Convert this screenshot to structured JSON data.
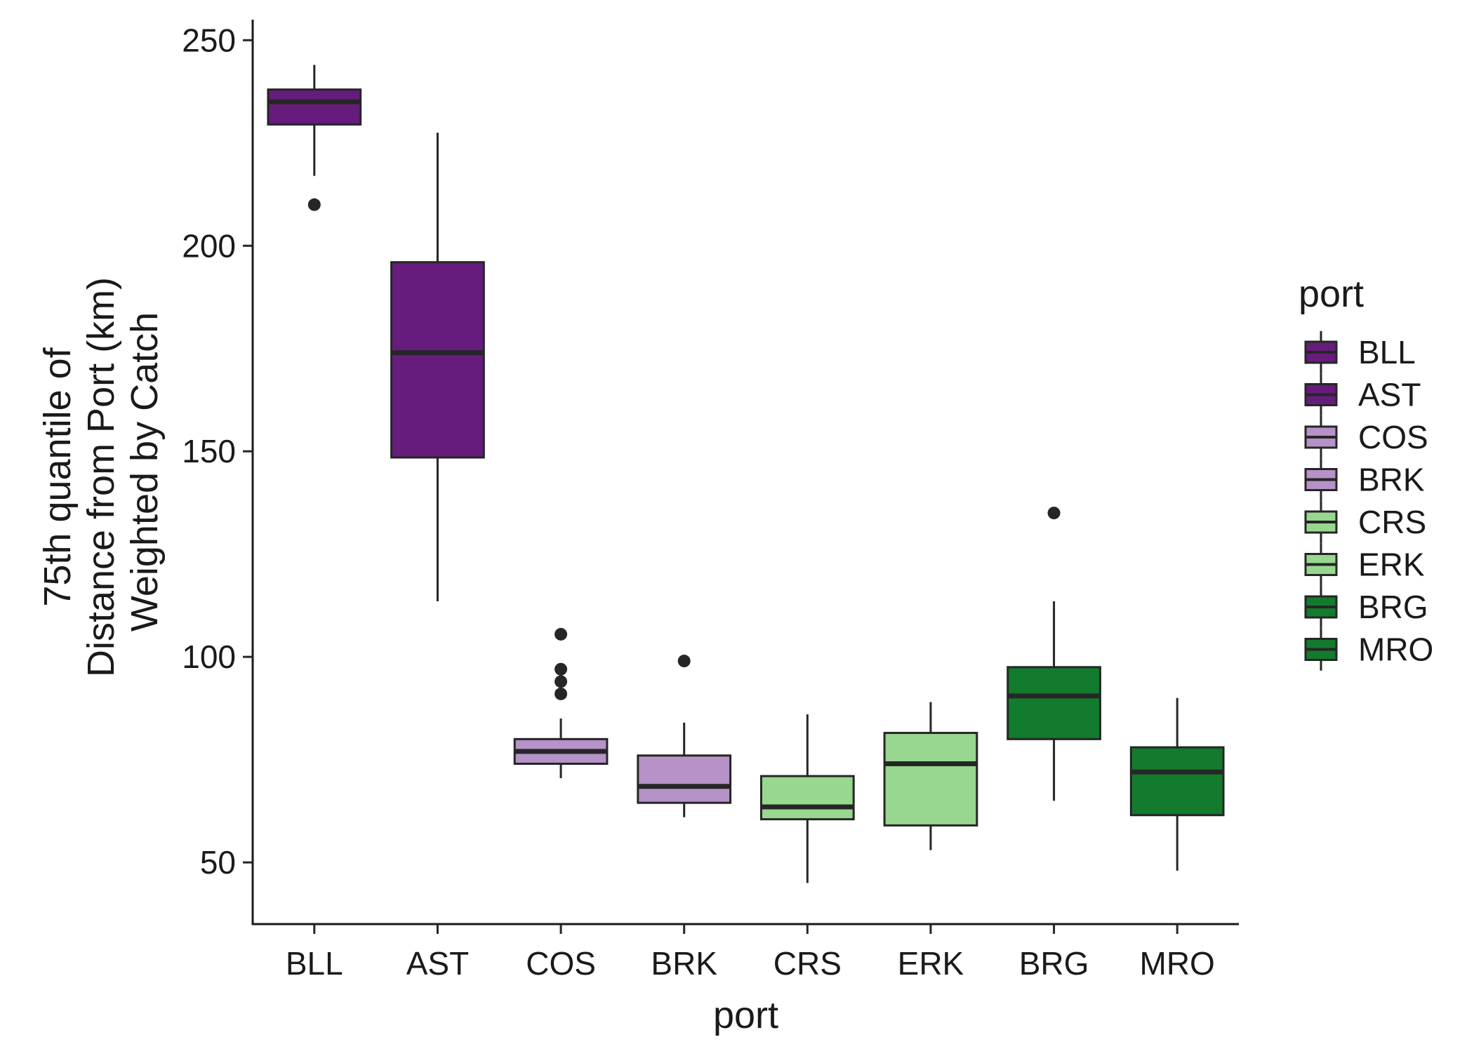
{
  "chart_data": {
    "type": "boxplot",
    "title": "",
    "xlabel": "port",
    "ylabel": [
      "75th quantile of",
      "Distance from Port (km)",
      "Weighted by Catch"
    ],
    "ylim": [
      35,
      255
    ],
    "yticks": [
      50,
      100,
      150,
      200,
      250
    ],
    "grid": false,
    "legend": {
      "title": "port",
      "placement": "right"
    },
    "categories": [
      "BLL",
      "AST",
      "COS",
      "BRK",
      "CRS",
      "ERK",
      "BRG",
      "MRO"
    ],
    "colors": [
      "#661c7c",
      "#661c7c",
      "#b592c7",
      "#b592c7",
      "#98d78f",
      "#98d78f",
      "#127b2d",
      "#127b2d"
    ],
    "boxes": [
      {
        "category": "BLL",
        "whisker_low": 217,
        "q1": 229.5,
        "median": 235,
        "q3": 238,
        "whisker_high": 244,
        "outliers": [
          210
        ]
      },
      {
        "category": "AST",
        "whisker_low": 113.5,
        "q1": 148.5,
        "median": 174,
        "q3": 196,
        "whisker_high": 227.5,
        "outliers": []
      },
      {
        "category": "COS",
        "whisker_low": 70.5,
        "q1": 74,
        "median": 77,
        "q3": 80,
        "whisker_high": 85,
        "outliers": [
          91,
          94,
          97,
          105.5
        ]
      },
      {
        "category": "BRK",
        "whisker_low": 61,
        "q1": 64.5,
        "median": 68.5,
        "q3": 76,
        "whisker_high": 84,
        "outliers": [
          99
        ]
      },
      {
        "category": "CRS",
        "whisker_low": 45,
        "q1": 60.5,
        "median": 63.5,
        "q3": 71,
        "whisker_high": 86,
        "outliers": []
      },
      {
        "category": "ERK",
        "whisker_low": 53,
        "q1": 59,
        "median": 74,
        "q3": 81.5,
        "whisker_high": 89,
        "outliers": []
      },
      {
        "category": "BRG",
        "whisker_low": 65,
        "q1": 80,
        "median": 90.5,
        "q3": 97.5,
        "whisker_high": 113.5,
        "outliers": [
          135
        ]
      },
      {
        "category": "MRO",
        "whisker_low": 48,
        "q1": 61.5,
        "median": 72,
        "q3": 78,
        "whisker_high": 90,
        "outliers": []
      }
    ]
  }
}
